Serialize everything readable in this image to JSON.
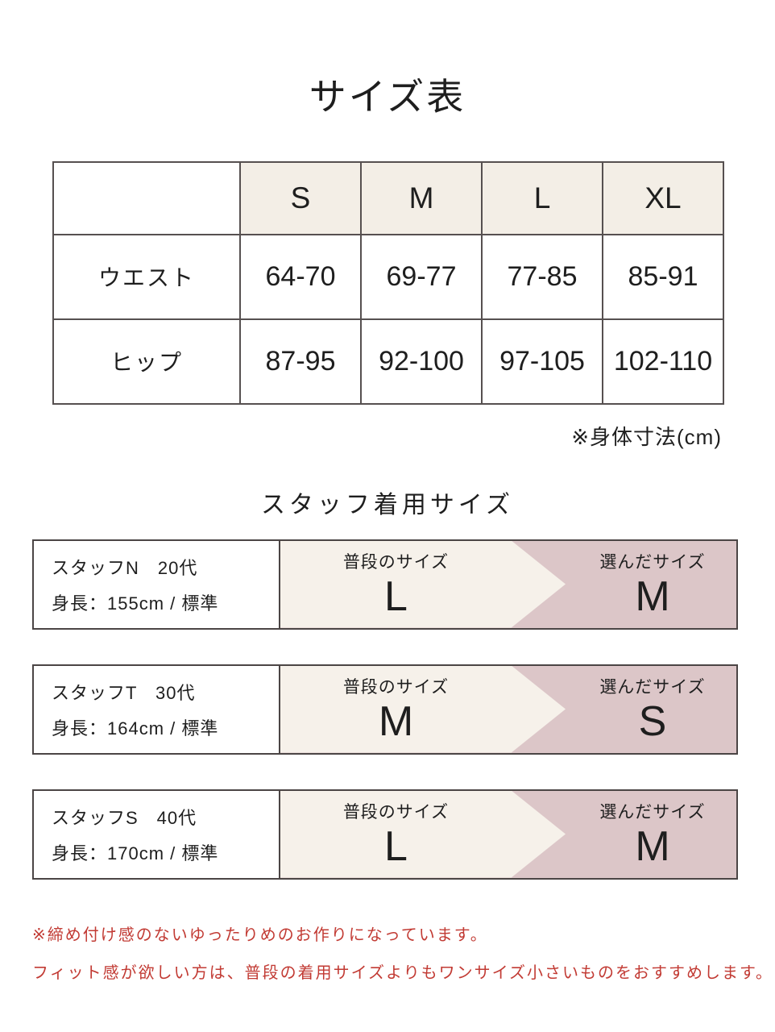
{
  "page": {
    "title": "サイズ表"
  },
  "size_table": {
    "columns": [
      "S",
      "M",
      "L",
      "XL"
    ],
    "rows": [
      {
        "label": "ウエスト",
        "values": [
          "64-70",
          "69-77",
          "77-85",
          "85-91"
        ]
      },
      {
        "label": "ヒップ",
        "values": [
          "87-95",
          "92-100",
          "97-105",
          "102-110"
        ]
      }
    ],
    "note": "※身体寸法(cm)"
  },
  "staff_section": {
    "heading": "スタッフ着用サイズ",
    "usual_label": "普段のサイズ",
    "chosen_label": "選んだサイズ",
    "staff": [
      {
        "name_line": "スタッフN　20代",
        "height_line": "身長：155cm / 標準",
        "usual_size": "L",
        "chosen_size": "M"
      },
      {
        "name_line": "スタッフT　30代",
        "height_line": "身長：164cm / 標準",
        "usual_size": "M",
        "chosen_size": "S"
      },
      {
        "name_line": "スタッフS　40代",
        "height_line": "身長：170cm / 標準",
        "usual_size": "L",
        "chosen_size": "M"
      }
    ]
  },
  "footnotes": {
    "line1": "※締め付け感のないゆったりめのお作りになっています。",
    "line2": "フィット感が欲しい方は、普段の着用サイズよりもワンサイズ小さいものをおすすめします。"
  },
  "colors": {
    "table_header_bg": "#f3eee6",
    "cream": "#f6f1ea",
    "pink": "#dcc6c8",
    "border": "#4b4545",
    "note_red": "#c23b34"
  }
}
